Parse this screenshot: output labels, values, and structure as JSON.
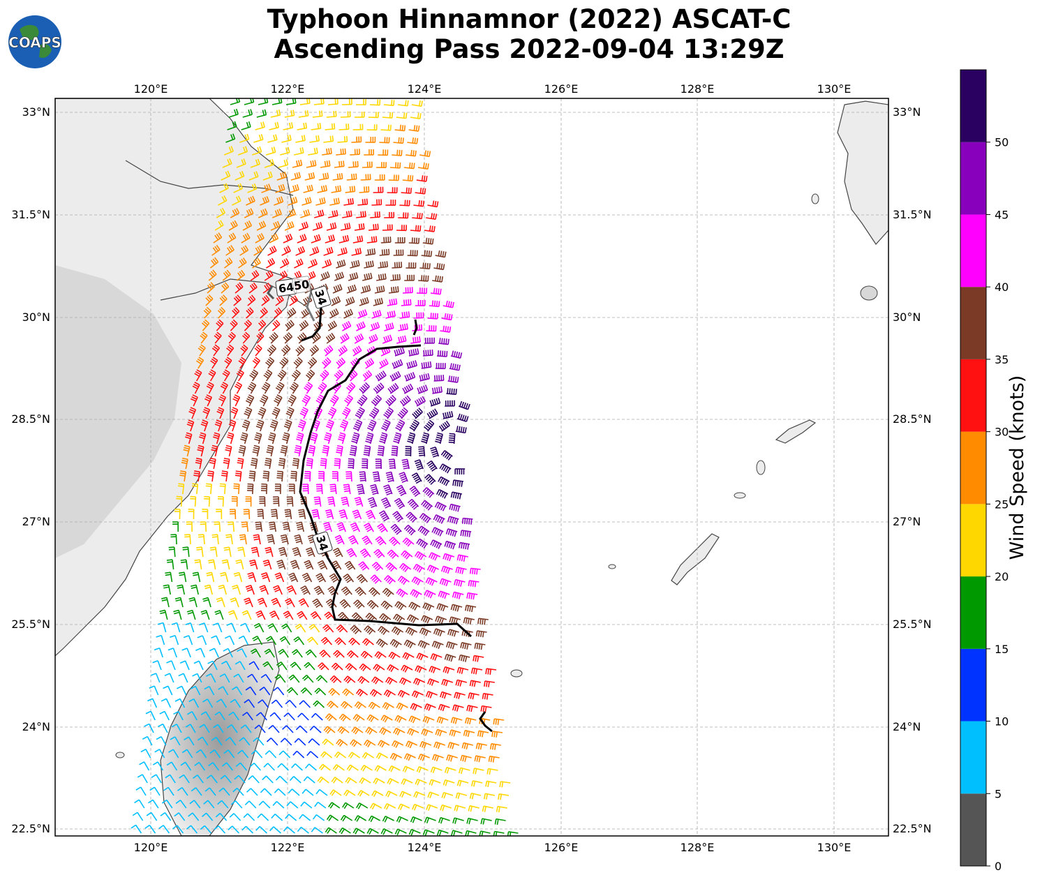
{
  "title_line1": "Typhoon Hinnamnor (2022) ASCAT-C",
  "title_line2": "Ascending Pass 2022-09-04 13:29Z",
  "logo_text": "COAPS",
  "lon_ticks": [
    "120°E",
    "122°E",
    "124°E",
    "126°E",
    "128°E",
    "130°E"
  ],
  "lat_ticks": [
    "33°N",
    "31.5°N",
    "30°N",
    "28.5°N",
    "27°N",
    "25.5°N",
    "24°N",
    "22.5°N"
  ],
  "colorbar": {
    "label": "Wind Speed (knots)",
    "ticks": [
      "0",
      "5",
      "10",
      "15",
      "20",
      "25",
      "30",
      "35",
      "40",
      "45",
      "50"
    ],
    "colors": [
      "#555555",
      "#00bfff",
      "#0033ff",
      "#009900",
      "#ffd700",
      "#ff8c00",
      "#ff1111",
      "#7b3a26",
      "#ff00ff",
      "#8800bb",
      "#2a0060"
    ]
  },
  "contour_labels": [
    "64",
    "50",
    "34",
    "34"
  ],
  "colors": {
    "coast": "#444444",
    "grid": "#aaaaaa",
    "land_shade": "#d8d8d8"
  }
}
